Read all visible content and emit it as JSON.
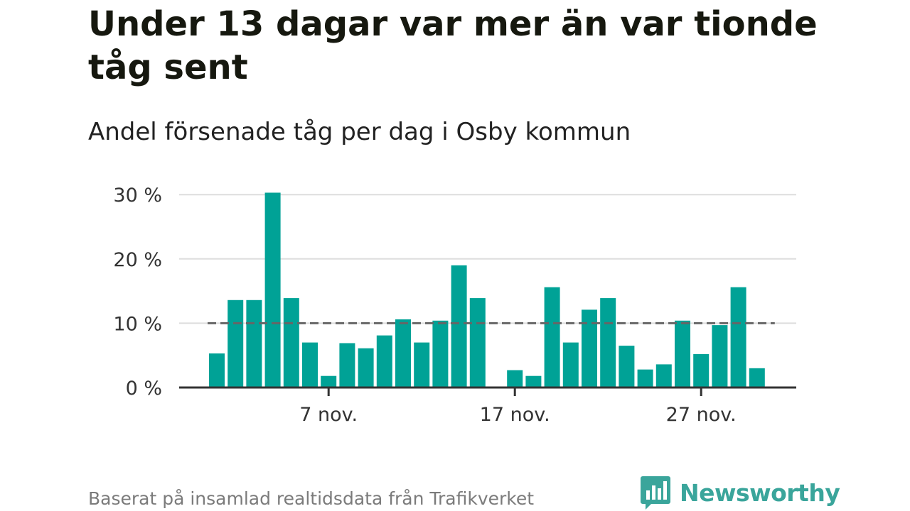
{
  "title": "Under 13 dagar var mer än var tionde tåg sent",
  "subtitle": "Andel försenade tåg per dag i Osby kommun",
  "footer": "Baserat på insamlad realtidsdata från Trafikverket",
  "brand": {
    "name": "Newsworthy",
    "icon": "newsworthy-logo-icon",
    "color": "#3aa59b"
  },
  "colors": {
    "bar": "#00a296",
    "reference": "#666666",
    "grid": "#dddddd",
    "axis": "#333333"
  },
  "chart_data": {
    "type": "bar",
    "x": [
      "1 nov.",
      "2 nov.",
      "3 nov.",
      "4 nov.",
      "5 nov.",
      "6 nov.",
      "7 nov.",
      "8 nov.",
      "9 nov.",
      "10 nov.",
      "11 nov.",
      "12 nov.",
      "13 nov.",
      "14 nov.",
      "15 nov.",
      "16 nov.",
      "17 nov.",
      "18 nov.",
      "19 nov.",
      "20 nov.",
      "21 nov.",
      "22 nov.",
      "23 nov.",
      "24 nov.",
      "25 nov.",
      "26 nov.",
      "27 nov.",
      "28 nov.",
      "29 nov.",
      "30 nov."
    ],
    "values": [
      5.3,
      13.6,
      13.6,
      30.3,
      13.9,
      7.0,
      1.8,
      6.9,
      6.1,
      8.1,
      10.6,
      7.0,
      10.4,
      19.0,
      13.9,
      0,
      2.7,
      1.8,
      15.6,
      7.0,
      12.1,
      13.9,
      6.5,
      2.8,
      3.6,
      10.4,
      5.2,
      9.7,
      15.6,
      3.0
    ],
    "y_ticks": [
      0,
      10,
      20,
      30
    ],
    "y_tick_labels": [
      "0 %",
      "10 %",
      "20 %",
      "30 %"
    ],
    "x_ticks": [
      7,
      17,
      27
    ],
    "x_tick_labels": [
      "7 nov.",
      "17 nov.",
      "27 nov."
    ],
    "ylim": [
      0,
      32
    ],
    "reference_line": 10,
    "grid": true
  }
}
